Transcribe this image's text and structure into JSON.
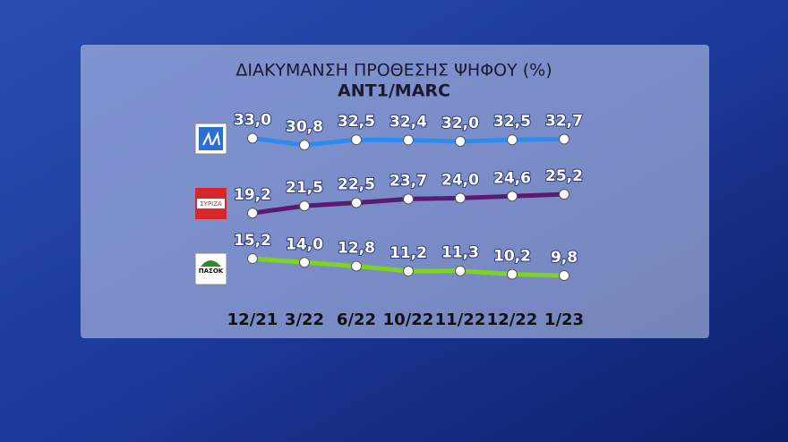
{
  "chart_data": {
    "type": "line",
    "title": "ΔΙΑΚΥΜΑΝΣΗ ΠΡΟΘΕΣΗΣ ΨΗΦΟΥ (%)",
    "subtitle": "ANT1/MARC",
    "categories": [
      "12/21",
      "3/22",
      "6/22",
      "10/22",
      "11/22",
      "12/22",
      "1/23"
    ],
    "series": [
      {
        "color": "#2d8cf0",
        "values": [
          33.0,
          30.8,
          32.5,
          32.4,
          32.0,
          32.5,
          32.7
        ],
        "value_labels": [
          "33,0",
          "30,8",
          "32,5",
          "32,4",
          "32,0",
          "32,5",
          "32,7"
        ]
      },
      {
        "name": "ΣΥΡΙΖΑ",
        "color": "#5a1a6e",
        "values": [
          19.2,
          21.5,
          22.5,
          23.7,
          24.0,
          24.6,
          25.2
        ],
        "value_labels": [
          "19,2",
          "21,5",
          "22,5",
          "23,7",
          "24,0",
          "24,6",
          "25,2"
        ]
      },
      {
        "name": "ΠΑΣΟΚ",
        "color": "#7ed321",
        "values": [
          15.2,
          14.0,
          12.8,
          11.2,
          11.3,
          10.2,
          9.8
        ],
        "value_labels": [
          "15,2",
          "14,0",
          "12,8",
          "11,2",
          "11,3",
          "10,2",
          "9,8"
        ]
      }
    ]
  }
}
